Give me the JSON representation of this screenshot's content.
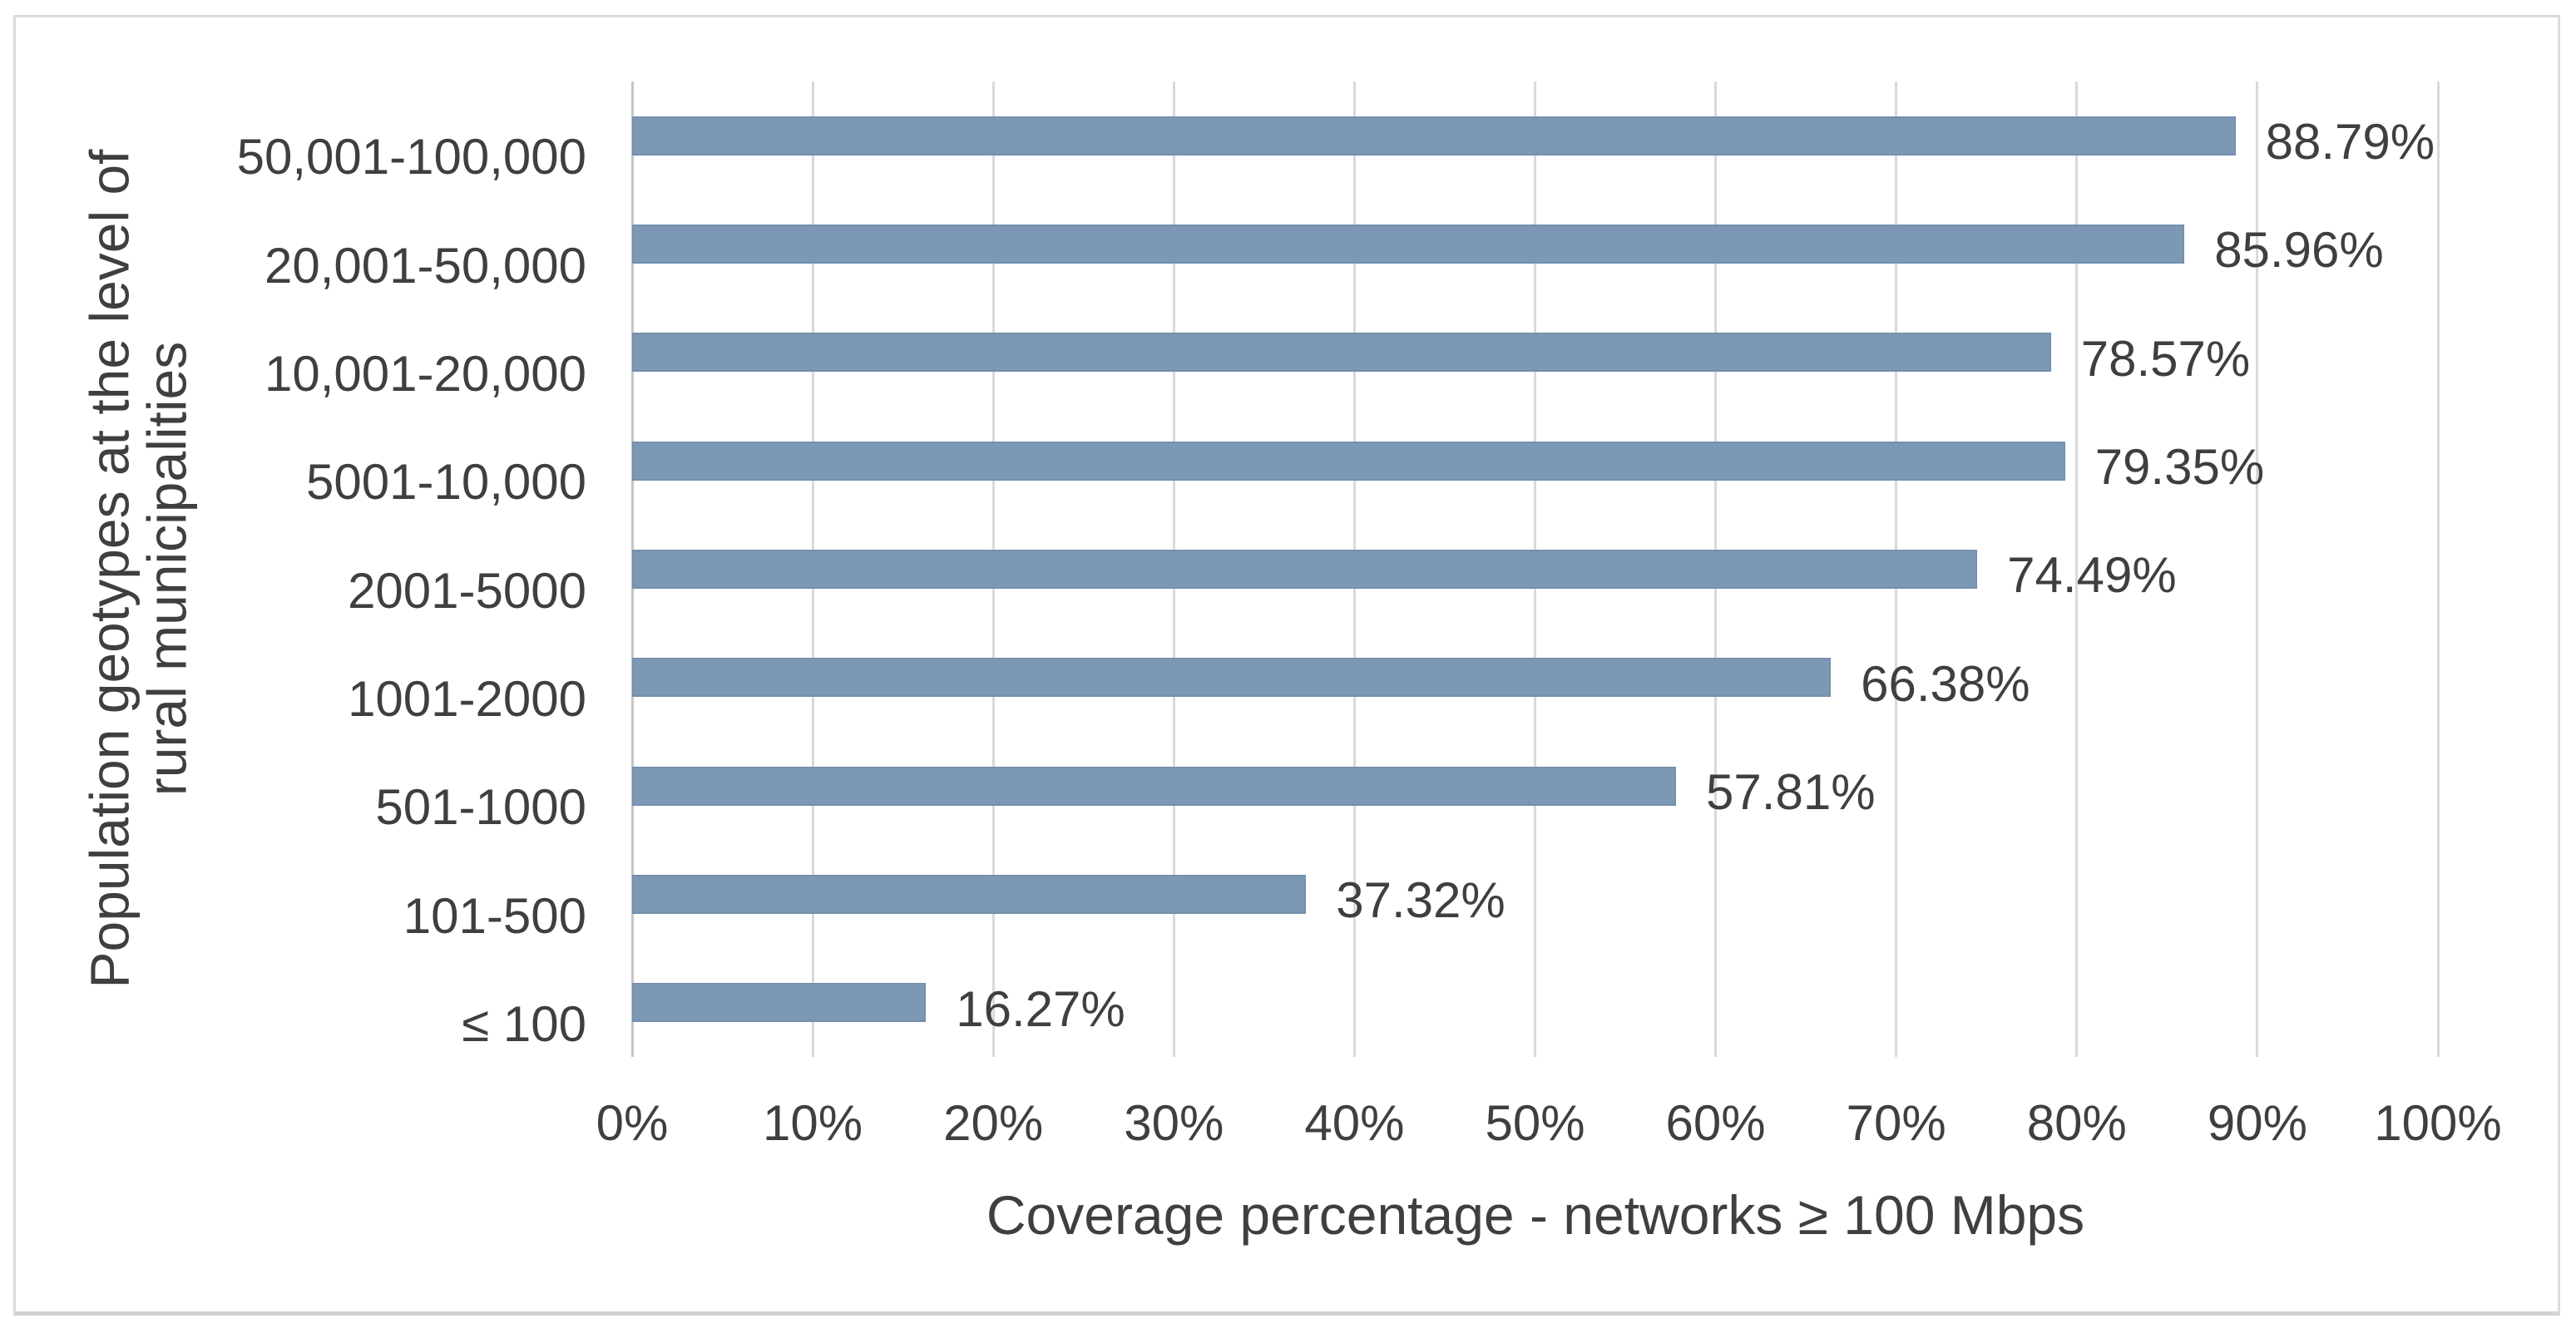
{
  "chart_data": {
    "type": "bar",
    "orientation": "horizontal",
    "xlabel": "Coverage percentage - networks ≥ 100 Mbps",
    "ylabel": "Population geotypes at the level of rural municipalities",
    "ylabel_lines": [
      "Population geotypes at the level of",
      "rural municipalities"
    ],
    "categories": [
      "50,001-100,000",
      "20,001-50,000",
      "10,001-20,000",
      "5001-10,000",
      "2001-5000",
      "1001-2000",
      "501-1000",
      "101-500",
      "≤ 100"
    ],
    "values": [
      88.79,
      85.96,
      78.57,
      79.35,
      74.49,
      66.38,
      57.81,
      37.32,
      16.27
    ],
    "value_labels": [
      "88.79%",
      "85.96%",
      "78.57%",
      "79.35%",
      "74.49%",
      "66.38%",
      "57.81%",
      "37.32%",
      "16.27%"
    ],
    "xlim": [
      0,
      100
    ],
    "x_ticks": [
      "0%",
      "10%",
      "20%",
      "30%",
      "40%",
      "50%",
      "60%",
      "70%",
      "80%",
      "90%",
      "100%"
    ],
    "x_tick_values": [
      0,
      10,
      20,
      30,
      40,
      50,
      60,
      70,
      80,
      90,
      100
    ],
    "grid": "vertical",
    "legend": "none",
    "colors": {
      "bar_fill": "#7C98B5",
      "bar_border": "#7390AD",
      "gridline": "#d9d9d9",
      "axis_line": "#c6c6c6",
      "text": "#3f3f3f",
      "frame_border": "#dcdcdc",
      "background": "#ffffff"
    }
  }
}
